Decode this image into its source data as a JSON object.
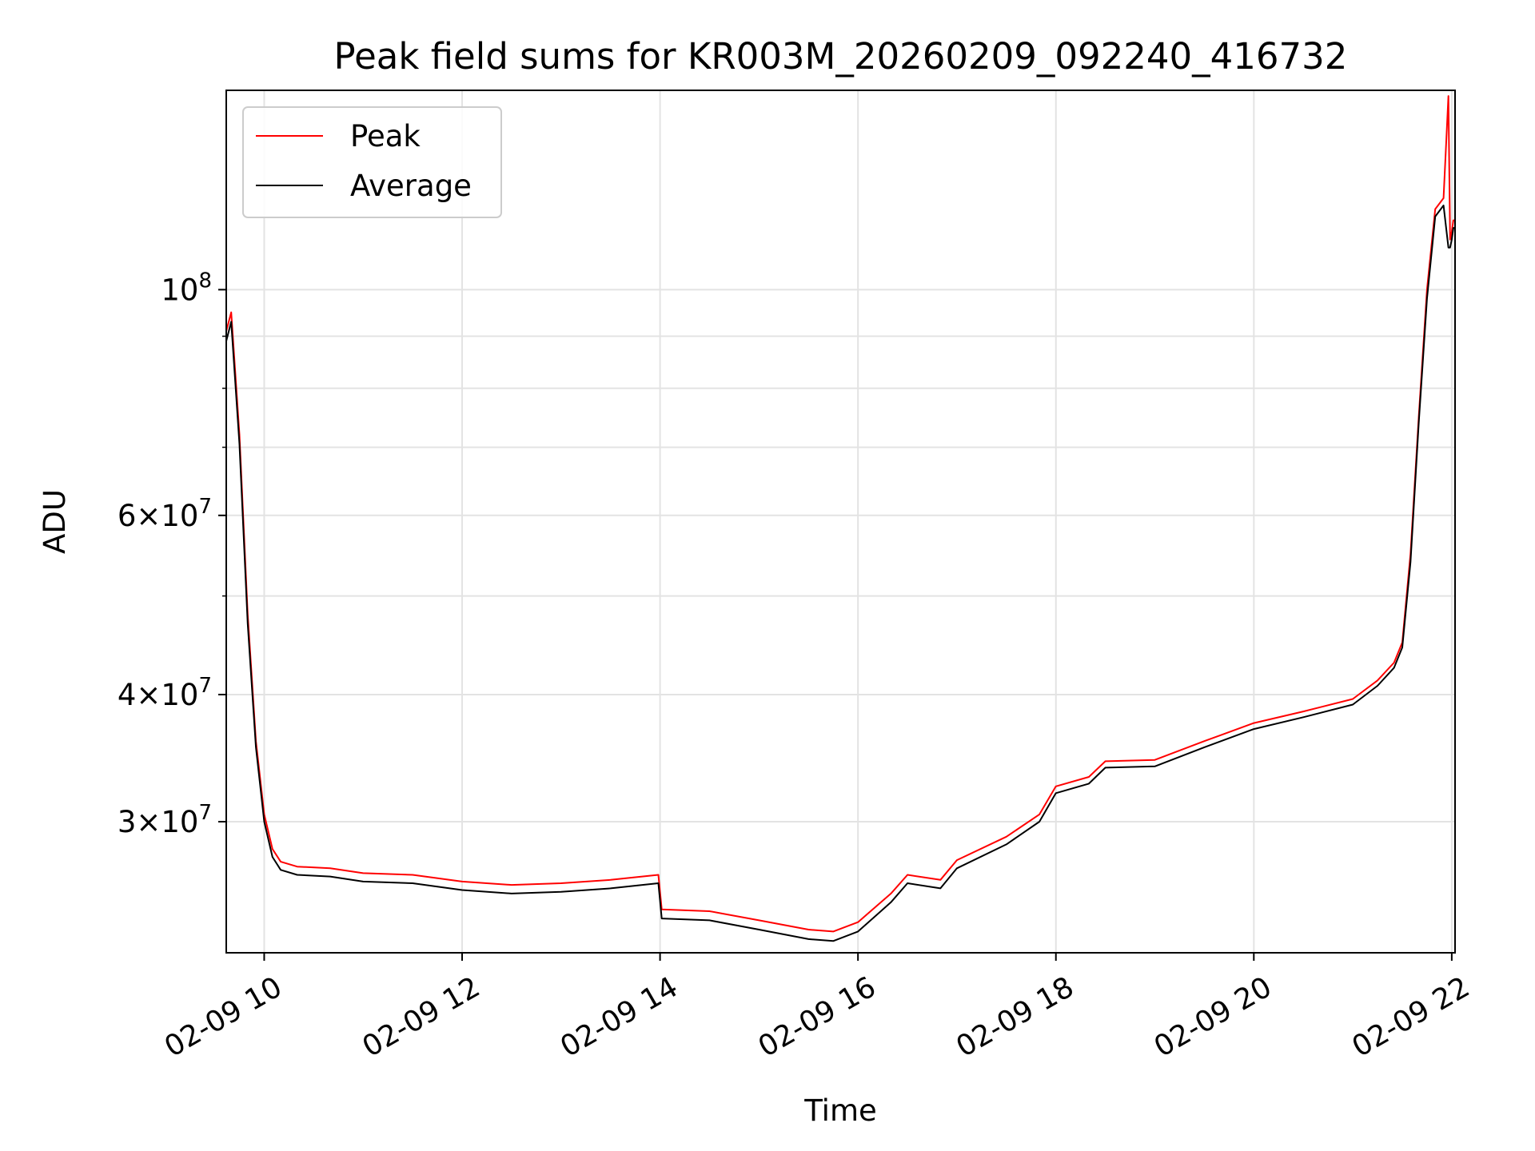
{
  "chart_data": {
    "type": "line",
    "title": "Peak field sums for KR003M_20260209_092240_416732",
    "xlabel": "Time",
    "ylabel": "ADU",
    "yscale": "log",
    "grid": true,
    "legend_position": "top-left",
    "xlim": [
      "02-09 09:37",
      "02-09 22:02"
    ],
    "ylim": [
      22300000,
      157000000
    ],
    "x_ticks": [
      "02-09 10",
      "02-09 12",
      "02-09 14",
      "02-09 16",
      "02-09 18",
      "02-09 20",
      "02-09 22"
    ],
    "y_ticks": [
      {
        "value": 30000000,
        "base": "3",
        "exp": "7"
      },
      {
        "value": 40000000,
        "base": "4",
        "exp": "7"
      },
      {
        "value": 60000000,
        "base": "6",
        "exp": "7"
      },
      {
        "value": 100000000,
        "base": "",
        "exp": "8"
      }
    ],
    "y_minor": [
      50000000,
      70000000,
      80000000,
      90000000,
      200000000
    ],
    "series": [
      {
        "name": "Peak",
        "color": "#ff0000",
        "x": [
          "02-09 09:37",
          "02-09 09:40",
          "02-09 09:45",
          "02-09 09:50",
          "02-09 09:55",
          "02-09 10:00",
          "02-09 10:05",
          "02-09 10:10",
          "02-09 10:20",
          "02-09 10:40",
          "02-09 11:00",
          "02-09 11:30",
          "02-09 12:00",
          "02-09 12:30",
          "02-09 13:00",
          "02-09 13:30",
          "02-09 13:59",
          "02-09 14:01",
          "02-09 14:30",
          "02-09 15:00",
          "02-09 15:30",
          "02-09 15:45",
          "02-09 16:00",
          "02-09 16:20",
          "02-09 16:30",
          "02-09 16:50",
          "02-09 17:00",
          "02-09 17:30",
          "02-09 17:50",
          "02-09 18:00",
          "02-09 18:20",
          "02-09 18:30",
          "02-09 19:00",
          "02-09 19:30",
          "02-09 20:00",
          "02-09 20:30",
          "02-09 21:00",
          "02-09 21:15",
          "02-09 21:25",
          "02-09 21:30",
          "02-09 21:35",
          "02-09 21:40",
          "02-09 21:45",
          "02-09 21:50",
          "02-09 21:55",
          "02-09 21:58",
          "02-09 21:59",
          "02-09 22:00",
          "02-09 22:01",
          "02-09 22:02"
        ],
        "values": [
          91000000,
          95000000,
          72000000,
          48000000,
          36000000,
          30500000,
          28200000,
          27400000,
          27100000,
          27000000,
          26700000,
          26600000,
          26200000,
          26000000,
          26100000,
          26300000,
          26600000,
          24600000,
          24500000,
          24000000,
          23500000,
          23400000,
          23900000,
          25500000,
          26600000,
          26300000,
          27500000,
          29000000,
          30500000,
          32500000,
          33200000,
          34400000,
          34500000,
          36000000,
          37500000,
          38500000,
          39600000,
          41300000,
          43000000,
          45000000,
          55000000,
          75000000,
          100000000,
          120000000,
          123000000,
          155000000,
          112000000,
          114000000,
          117000000,
          117000000
        ]
      },
      {
        "name": "Average",
        "color": "#000000",
        "x": [
          "02-09 09:37",
          "02-09 09:40",
          "02-09 09:45",
          "02-09 09:50",
          "02-09 09:55",
          "02-09 10:00",
          "02-09 10:05",
          "02-09 10:10",
          "02-09 10:20",
          "02-09 10:40",
          "02-09 11:00",
          "02-09 11:30",
          "02-09 12:00",
          "02-09 12:30",
          "02-09 13:00",
          "02-09 13:30",
          "02-09 13:59",
          "02-09 14:01",
          "02-09 14:30",
          "02-09 15:00",
          "02-09 15:30",
          "02-09 15:45",
          "02-09 16:00",
          "02-09 16:20",
          "02-09 16:30",
          "02-09 16:50",
          "02-09 17:00",
          "02-09 17:30",
          "02-09 17:50",
          "02-09 18:00",
          "02-09 18:20",
          "02-09 18:30",
          "02-09 19:00",
          "02-09 19:30",
          "02-09 20:00",
          "02-09 20:30",
          "02-09 21:00",
          "02-09 21:15",
          "02-09 21:25",
          "02-09 21:30",
          "02-09 21:35",
          "02-09 21:40",
          "02-09 21:45",
          "02-09 21:50",
          "02-09 21:55",
          "02-09 21:58",
          "02-09 21:59",
          "02-09 22:00",
          "02-09 22:01",
          "02-09 22:02"
        ],
        "values": [
          89000000,
          93000000,
          70500000,
          47000000,
          35500000,
          30000000,
          27700000,
          26900000,
          26600000,
          26500000,
          26200000,
          26100000,
          25700000,
          25500000,
          25600000,
          25800000,
          26100000,
          24100000,
          24000000,
          23500000,
          23000000,
          22900000,
          23400000,
          25000000,
          26100000,
          25800000,
          27000000,
          28500000,
          30000000,
          32000000,
          32700000,
          33900000,
          34000000,
          35500000,
          37000000,
          38000000,
          39100000,
          40800000,
          42500000,
          44500000,
          54000000,
          74000000,
          98000000,
          118000000,
          121000000,
          110000000,
          110000000,
          112000000,
          115000000,
          115000000
        ]
      }
    ]
  }
}
